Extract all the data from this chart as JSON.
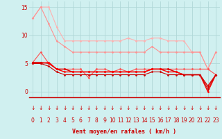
{
  "x": [
    0,
    1,
    2,
    3,
    4,
    5,
    6,
    7,
    8,
    9,
    10,
    11,
    12,
    13,
    14,
    15,
    16,
    17,
    18,
    19,
    20,
    21,
    22,
    23
  ],
  "series": [
    {
      "values": [
        13,
        15,
        15,
        11.5,
        9,
        9,
        9,
        9,
        9,
        9,
        9,
        9,
        9.5,
        9,
        9,
        9.5,
        9.5,
        9,
        9,
        9,
        7,
        7,
        4,
        7
      ],
      "color": "#ffb0b0",
      "lw": 0.8,
      "marker": "D",
      "ms": 1.5
    },
    {
      "values": [
        13,
        15,
        12,
        9,
        8,
        7,
        7,
        7,
        7,
        7,
        7,
        7,
        7,
        7,
        7,
        8,
        7,
        7,
        7,
        7,
        7,
        7,
        4,
        7
      ],
      "color": "#ff9090",
      "lw": 0.8,
      "marker": "D",
      "ms": 1.5
    },
    {
      "values": [
        5.2,
        7,
        5,
        4,
        4,
        4,
        4,
        2.5,
        4,
        4,
        3.5,
        4,
        3.5,
        4,
        4,
        4,
        4,
        4,
        4,
        4,
        4,
        4,
        4,
        3
      ],
      "color": "#ff5050",
      "lw": 0.8,
      "marker": "D",
      "ms": 1.5
    },
    {
      "values": [
        5.2,
        5.2,
        5,
        4,
        4,
        3.5,
        3.5,
        3.5,
        3.5,
        3.5,
        3.5,
        3.5,
        3.5,
        3.5,
        3.5,
        4,
        4,
        4,
        3.5,
        3,
        3,
        3,
        1,
        3
      ],
      "color": "#dd0000",
      "lw": 1.0,
      "marker": "D",
      "ms": 1.5
    },
    {
      "values": [
        5,
        5,
        5.2,
        4,
        3.5,
        3.5,
        3.5,
        3.5,
        3.5,
        3.5,
        3.5,
        3.5,
        3.5,
        3.5,
        3.5,
        4,
        4,
        3.5,
        3.5,
        3,
        3,
        3,
        0,
        3
      ],
      "color": "#ff0000",
      "lw": 1.0,
      "marker": "D",
      "ms": 1.5
    },
    {
      "values": [
        5,
        5,
        4.5,
        3.5,
        3,
        3,
        3,
        3,
        3,
        3,
        3,
        3,
        3,
        3,
        3,
        3.5,
        3.5,
        3,
        3,
        3,
        3,
        3,
        0.5,
        3
      ],
      "color": "#cc0000",
      "lw": 0.8,
      "marker": "D",
      "ms": 1.5
    }
  ],
  "xlabel": "Vent moyen/en rafales ( km/h )",
  "ylim": [
    -1,
    16
  ],
  "yticks": [
    0,
    5,
    10,
    15
  ],
  "xticks": [
    0,
    1,
    2,
    3,
    4,
    5,
    6,
    7,
    8,
    9,
    10,
    11,
    12,
    13,
    14,
    15,
    16,
    17,
    18,
    19,
    20,
    21,
    22,
    23
  ],
  "bg_color": "#d0f0f0",
  "grid_color": "#b0d8d8",
  "tick_color": "#cc0000",
  "label_color": "#cc0000",
  "arrow_symbol": "↓"
}
